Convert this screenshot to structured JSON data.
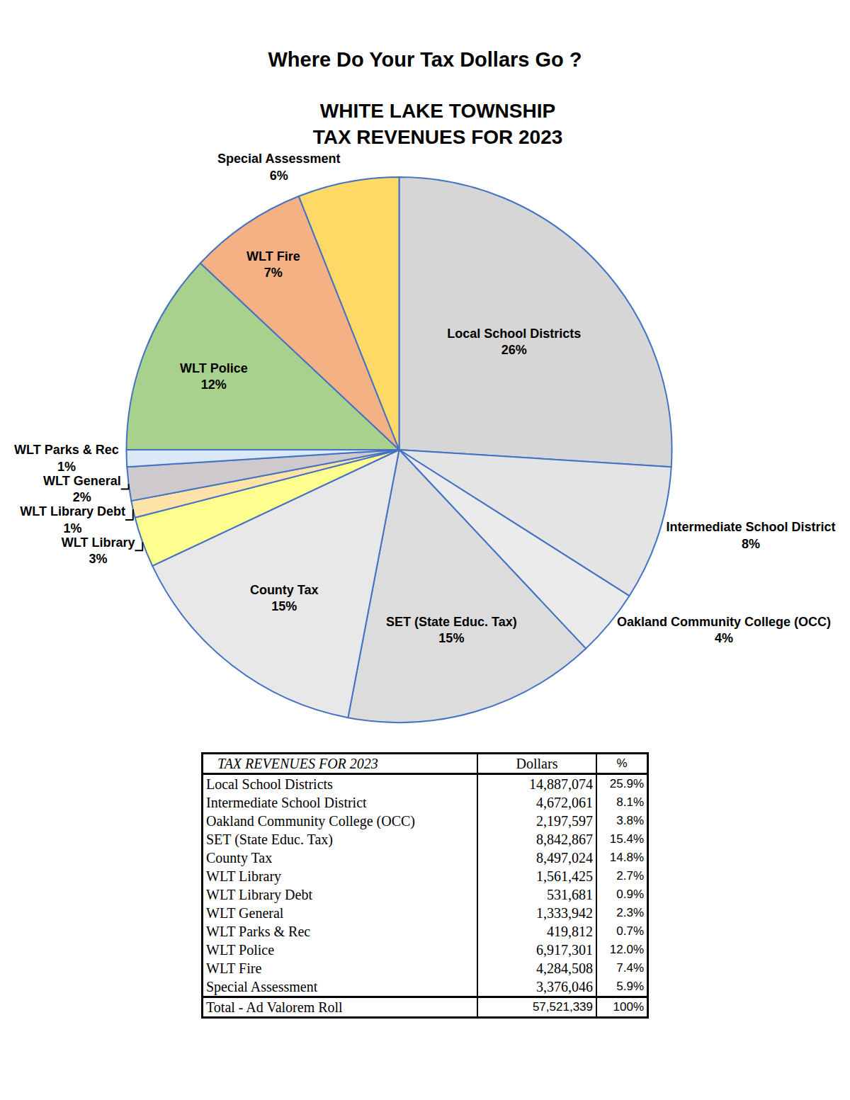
{
  "header": "Where Do Your Tax Dollars Go ?",
  "chart_data": {
    "type": "pie",
    "title": "WHITE LAKE TOWNSHIP\nTAX REVENUES FOR 2023",
    "categories": [
      "Local School Districts",
      "Intermediate School District",
      "Oakland Community College (OCC)",
      "SET (State Educ. Tax)",
      "County Tax",
      "WLT Library",
      "WLT Library Debt",
      "WLT General",
      "WLT Parks & Rec",
      "WLT Police",
      "WLT Fire",
      "Special Assessment"
    ],
    "values": [
      26,
      8,
      4,
      15,
      15,
      3,
      1,
      2,
      1,
      12,
      7,
      6
    ],
    "value_labels": [
      "26%",
      "8%",
      "4%",
      "15%",
      "15%",
      "3%",
      "1%",
      "2%",
      "1%",
      "12%",
      "7%",
      "6%"
    ],
    "colors": [
      "#d6d6d6",
      "#e4e4e4",
      "#ebebeb",
      "#dcdcdc",
      "#e8e8e8",
      "#ffff8f",
      "#fde3a7",
      "#cdc9cd",
      "#dbe9f7",
      "#a9d18e",
      "#f4b183",
      "#ffd966"
    ],
    "data_labels": true
  },
  "table": {
    "header": [
      "TAX REVENUES FOR 2023",
      "Dollars",
      "%"
    ],
    "rows": [
      [
        "Local School Districts",
        "14,887,074",
        "25.9%"
      ],
      [
        "Intermediate School District",
        "4,672,061",
        "8.1%"
      ],
      [
        "Oakland Community College (OCC)",
        "2,197,597",
        "3.8%"
      ],
      [
        "SET (State Educ. Tax)",
        "8,842,867",
        "15.4%"
      ],
      [
        "County Tax",
        "8,497,024",
        "14.8%"
      ],
      [
        "WLT Library",
        "1,561,425",
        "2.7%"
      ],
      [
        "WLT Library Debt",
        "531,681",
        "0.9%"
      ],
      [
        "WLT General",
        "1,333,942",
        "2.3%"
      ],
      [
        "WLT Parks & Rec",
        "419,812",
        "0.7%"
      ],
      [
        "WLT Police",
        "6,917,301",
        "12.0%"
      ],
      [
        "WLT Fire",
        "4,284,508",
        "7.4%"
      ],
      [
        "Special Assessment",
        "3,376,046",
        "5.9%"
      ]
    ],
    "total": [
      "Total - Ad Valorem Roll",
      "57,521,339",
      "100%"
    ]
  }
}
